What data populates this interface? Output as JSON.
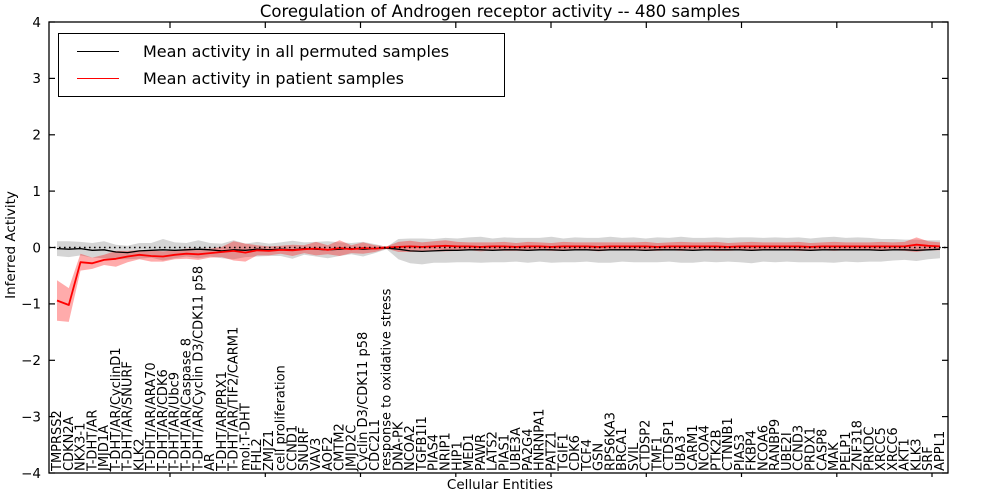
{
  "chart_data": {
    "type": "line",
    "title": "Coregulation of Androgen receptor activity -- 480 samples",
    "xlabel": "Cellular Entities",
    "ylabel": "Inferred Activity",
    "ylim": [
      -4,
      4
    ],
    "yticks": [
      4,
      3,
      2,
      1,
      0,
      -1,
      -2,
      -3,
      -4
    ],
    "grid": false,
    "legend_position": "upper left",
    "zero_reference_line": "dotted black at y=0",
    "categories": [
      "TMPRSS2",
      "CDKN2A",
      "NKX3-1",
      "T-DHT/AR",
      "JMJD1A",
      "T-DHT/AR/CyclinD1",
      "T-DHT/AR/SNURF",
      "KLK2",
      "T-DHT/AR/ARA70",
      "T-DHT/AR/CDK6",
      "T-DHT/AR/Ubc9",
      "T-DHT/AR/Caspase 8",
      "T-DHT/AR/Cyclin D3/CDK11 p58",
      "AR",
      "T-DHT/AR/PRX1",
      "T-DHT/AR/TIF2/CARM1",
      "mol:T-DHT",
      "FHL2",
      "ZMJZ1",
      "cell proliferation",
      "CCND1",
      "SNURF",
      "VAV3",
      "AOF2",
      "CMTM2",
      "JMJD2C",
      "Cyclin D3/CDK11 p58",
      "CDC2L1",
      "response to oxidative stress",
      "DNA-PK",
      "NCOA2",
      "TGFB1I1",
      "PIAS4",
      "NRIP1",
      "HIP1",
      "MED1",
      "PAWR",
      "LATS2",
      "PIAS1",
      "UBE3A",
      "PA2G4",
      "HNRNPA1",
      "PATZ1",
      "TGIF1",
      "CDK6",
      "TCF4",
      "GSN",
      "RPS6KA3",
      "BRCA1",
      "SVIL",
      "CTDSP2",
      "TMF1",
      "CTDSP1",
      "UBA3",
      "CARM1",
      "NCOA4",
      "PTK2B",
      "CTNNB1",
      "PIAS3",
      "FKBP4",
      "NCOA6",
      "RANBP9",
      "UBE2I",
      "CCND3",
      "PRDX1",
      "CASP8",
      "MAK",
      "PELP1",
      "ZNF318",
      "PRKDC",
      "XRCC5",
      "XRCC6",
      "AKT1",
      "KLK3",
      "SRF",
      "APPL1"
    ],
    "series": [
      {
        "name": "Mean activity in all permuted samples",
        "color": "#000000",
        "band_color": "rgba(105,105,105,0.28)",
        "values": [
          -0.02,
          -0.03,
          -0.02,
          -0.05,
          -0.04,
          -0.08,
          -0.09,
          -0.06,
          -0.05,
          -0.04,
          -0.05,
          -0.04,
          -0.03,
          -0.04,
          -0.06,
          -0.04,
          -0.05,
          -0.03,
          -0.04,
          -0.03,
          -0.04,
          -0.02,
          -0.03,
          -0.04,
          -0.03,
          -0.02,
          -0.03,
          -0.02,
          -0.01,
          -0.03,
          -0.06,
          -0.07,
          -0.06,
          -0.05,
          -0.05,
          -0.04,
          -0.04,
          -0.05,
          -0.04,
          -0.04,
          -0.05,
          -0.04,
          -0.04,
          -0.05,
          -0.04,
          -0.04,
          -0.05,
          -0.04,
          -0.04,
          -0.04,
          -0.05,
          -0.04,
          -0.04,
          -0.04,
          -0.05,
          -0.04,
          -0.04,
          -0.04,
          -0.04,
          -0.05,
          -0.04,
          -0.04,
          -0.04,
          -0.04,
          -0.05,
          -0.04,
          -0.04,
          -0.04,
          -0.04,
          -0.04,
          -0.05,
          -0.04,
          -0.04,
          -0.05,
          -0.04,
          -0.03
        ],
        "band_halfwidth": [
          0.13,
          0.14,
          0.12,
          0.13,
          0.15,
          0.13,
          0.12,
          0.14,
          0.13,
          0.19,
          0.14,
          0.12,
          0.16,
          0.12,
          0.13,
          0.17,
          0.12,
          0.13,
          0.11,
          0.12,
          0.16,
          0.11,
          0.13,
          0.15,
          0.12,
          0.1,
          0.13,
          0.08,
          0.02,
          0.18,
          0.22,
          0.23,
          0.21,
          0.22,
          0.21,
          0.22,
          0.23,
          0.21,
          0.22,
          0.21,
          0.22,
          0.21,
          0.23,
          0.21,
          0.22,
          0.21,
          0.22,
          0.23,
          0.21,
          0.22,
          0.21,
          0.22,
          0.21,
          0.23,
          0.22,
          0.21,
          0.22,
          0.21,
          0.22,
          0.23,
          0.21,
          0.22,
          0.21,
          0.22,
          0.21,
          0.22,
          0.23,
          0.21,
          0.22,
          0.21,
          0.2,
          0.19,
          0.18,
          0.19,
          0.17,
          0.16
        ]
      },
      {
        "name": "Mean activity in patient samples",
        "color": "#ff0000",
        "band_color": "rgba(255,0,0,0.33)",
        "values": [
          -0.94,
          -1.02,
          -0.26,
          -0.28,
          -0.22,
          -0.2,
          -0.16,
          -0.13,
          -0.15,
          -0.16,
          -0.13,
          -0.11,
          -0.12,
          -0.1,
          -0.08,
          -0.06,
          -0.09,
          -0.05,
          -0.06,
          -0.04,
          -0.05,
          -0.03,
          -0.02,
          -0.04,
          -0.01,
          -0.03,
          -0.01,
          -0.02,
          0.0,
          0.01,
          0.02,
          0.01,
          0.02,
          0.03,
          0.02,
          0.02,
          0.01,
          0.02,
          0.02,
          0.01,
          0.02,
          0.02,
          0.01,
          0.02,
          0.02,
          0.02,
          0.01,
          0.02,
          0.02,
          0.02,
          0.02,
          0.01,
          0.02,
          0.02,
          0.02,
          0.02,
          0.02,
          0.01,
          0.02,
          0.02,
          0.02,
          0.02,
          0.02,
          0.02,
          0.01,
          0.02,
          0.02,
          0.02,
          0.02,
          0.02,
          0.02,
          0.02,
          0.02,
          0.05,
          0.03,
          0.02
        ],
        "band_halfwidth": [
          0.36,
          0.3,
          0.15,
          0.1,
          0.09,
          0.14,
          0.1,
          0.08,
          0.1,
          0.09,
          0.08,
          0.09,
          0.1,
          0.08,
          0.09,
          0.17,
          0.16,
          0.09,
          0.08,
          0.07,
          0.1,
          0.07,
          0.12,
          0.08,
          0.14,
          0.07,
          0.1,
          0.06,
          0.02,
          0.09,
          0.1,
          0.08,
          0.09,
          0.1,
          0.08,
          0.07,
          0.08,
          0.07,
          0.08,
          0.07,
          0.08,
          0.07,
          0.07,
          0.08,
          0.07,
          0.07,
          0.08,
          0.07,
          0.07,
          0.07,
          0.08,
          0.07,
          0.07,
          0.08,
          0.07,
          0.07,
          0.08,
          0.07,
          0.07,
          0.08,
          0.07,
          0.07,
          0.07,
          0.08,
          0.07,
          0.07,
          0.08,
          0.07,
          0.07,
          0.07,
          0.08,
          0.07,
          0.08,
          0.13,
          0.08,
          0.07
        ]
      }
    ]
  },
  "legend": {
    "items": [
      {
        "label": "Mean activity in all permuted samples",
        "color": "#000000"
      },
      {
        "label": "Mean activity in patient samples",
        "color": "#ff0000"
      }
    ]
  }
}
